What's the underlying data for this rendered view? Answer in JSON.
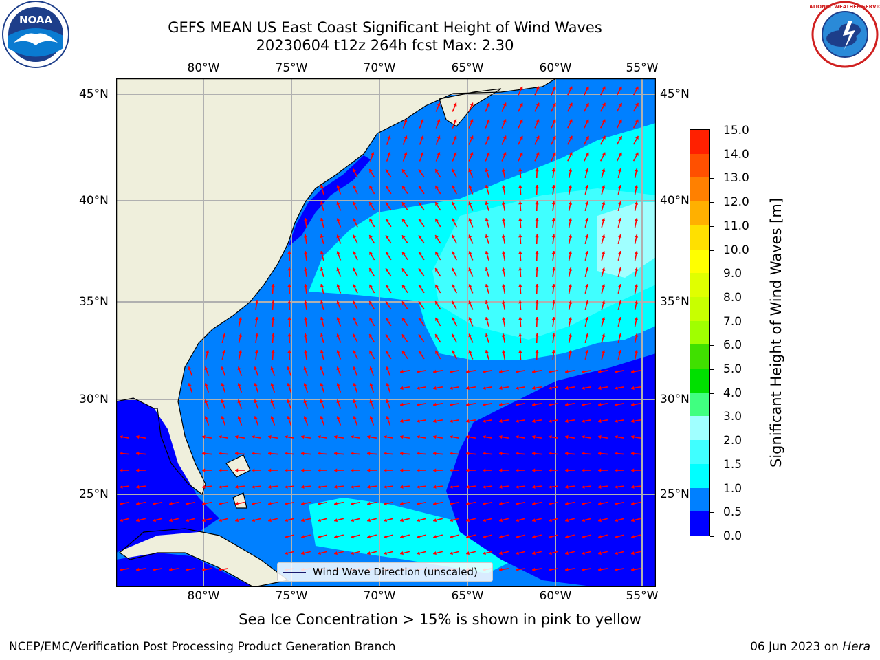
{
  "title_line1": "GEFS MEAN US East Coast Significant Height of Wind Waves",
  "title_line2": "20230604 t12z 264h fcst   Max: 2.30",
  "lon_labels": [
    "80°W",
    "75°W",
    "70°W",
    "65°W",
    "60°W",
    "55°W"
  ],
  "lat_labels": [
    "45°N",
    "40°N",
    "35°N",
    "30°N",
    "25°N"
  ],
  "colorbar": {
    "label": "Significant Height of Wind Waves [m]",
    "ticks": [
      "15.0",
      "14.0",
      "13.0",
      "12.0",
      "11.0",
      "10.0",
      "9.0",
      "8.0",
      "7.0",
      "6.0",
      "5.0",
      "4.0",
      "3.0",
      "2.0",
      "1.5",
      "1.0",
      "0.5",
      "0.0"
    ],
    "colors": [
      "#0000ff",
      "#0080ff",
      "#00ffff",
      "#40ffff",
      "#a0ffff",
      "#40ff80",
      "#00e000",
      "#40e000",
      "#a0ff00",
      "#c8ff00",
      "#e0ff00",
      "#ffff00",
      "#ffe000",
      "#ffb000",
      "#ff8000",
      "#ff5000",
      "#ff2000",
      "#ff0000"
    ]
  },
  "legend_label": "Wind Wave Direction (unscaled)",
  "ice_note": "Sea Ice Concentration > 15% is shown in pink to yellow",
  "footer_left": "NCEP/EMC/Verification Post Processing Product Generation Branch",
  "footer_right_date": "06 Jun 2023 on ",
  "footer_right_host": "Hera",
  "logo_left_text": "NOAA",
  "logo_right_text": "NATIONAL WEATHER SERVICE",
  "colors": {
    "land": "#efefdc",
    "wave_0_05": "#0000ff",
    "wave_05_1": "#0080ff",
    "wave_1_15": "#00ffff",
    "wave_15_2": "#40ffff",
    "wave_2_3": "#a0ffff",
    "arrow": "#ff0000",
    "grid": "#b0b0b0"
  }
}
